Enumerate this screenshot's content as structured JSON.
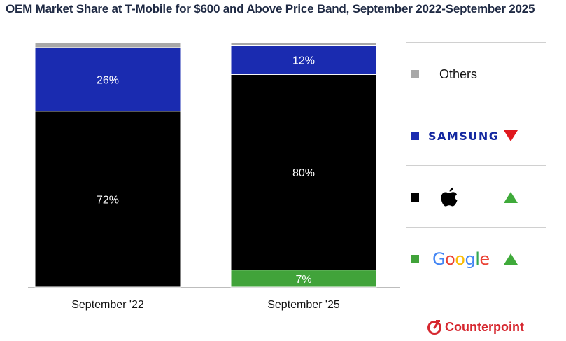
{
  "title": "OEM Market Share at T-Mobile for $600 and Above Price Band, September 2022-September 2025",
  "brand": "Counterpoint",
  "colors": {
    "others": "#a8a8a8",
    "samsung": "#1a2bb0",
    "apple": "#000000",
    "google": "#41a33a",
    "up": "#3faa3a",
    "down": "#e0181e",
    "label": "#ffffff"
  },
  "legend": [
    {
      "key": "others",
      "label": "Others",
      "trend": ""
    },
    {
      "key": "samsung",
      "label": "SAMSUNG",
      "trend": "down"
    },
    {
      "key": "apple",
      "label": "Apple",
      "trend": "up"
    },
    {
      "key": "google",
      "label": "Google",
      "trend": "up"
    }
  ],
  "chart_data": {
    "type": "bar",
    "stacked": true,
    "normalized": true,
    "title": "OEM Market Share at T-Mobile for $600 and Above Price Band, September 2022-September 2025",
    "categories": [
      "September '22",
      "September '25"
    ],
    "series": [
      {
        "name": "Google",
        "key": "google",
        "values": [
          0,
          7
        ],
        "labels": [
          "",
          "7%"
        ]
      },
      {
        "name": "Apple",
        "key": "apple",
        "values": [
          72,
          80
        ],
        "labels": [
          "72%",
          "80%"
        ]
      },
      {
        "name": "Samsung",
        "key": "samsung",
        "values": [
          26,
          12
        ],
        "labels": [
          "26%",
          "12%"
        ]
      },
      {
        "name": "Others",
        "key": "others",
        "values": [
          2,
          1
        ],
        "labels": [
          "",
          ""
        ]
      }
    ],
    "ylim": [
      0,
      100
    ],
    "xlabel": "",
    "ylabel": ""
  }
}
